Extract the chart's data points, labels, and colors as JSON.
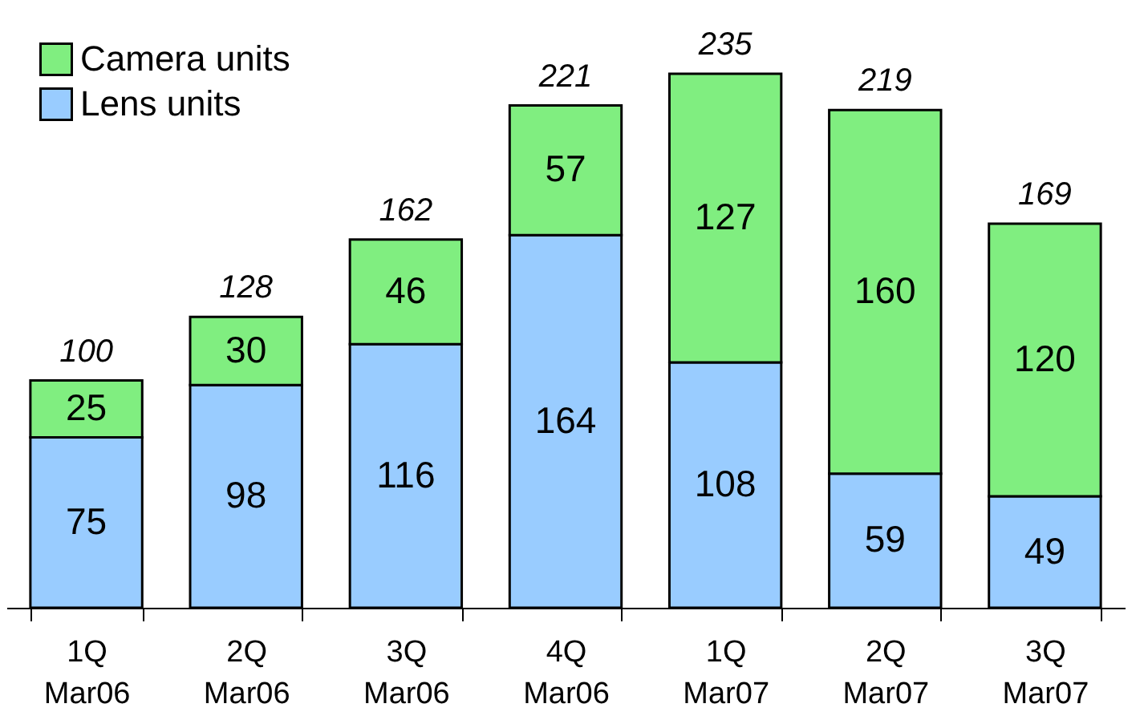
{
  "chart_data": {
    "type": "bar",
    "stacked": true,
    "data_labels": true,
    "legend": "top left",
    "categories": [
      "1Q\nMar06",
      "2Q\nMar06",
      "3Q\nMar06",
      "4Q\nMar06",
      "1Q\nMar07",
      "2Q\nMar07",
      "3Q\nMar07"
    ],
    "series": [
      {
        "name": "Lens units",
        "color": "#99ccff",
        "values": [
          75,
          98,
          116,
          164,
          108,
          59,
          49
        ]
      },
      {
        "name": "Camera units",
        "color": "#80ee80",
        "values": [
          25,
          30,
          46,
          57,
          127,
          160,
          120
        ]
      }
    ],
    "totals": [
      "100",
      "128",
      "162",
      "221",
      "235",
      "219",
      "169"
    ]
  }
}
